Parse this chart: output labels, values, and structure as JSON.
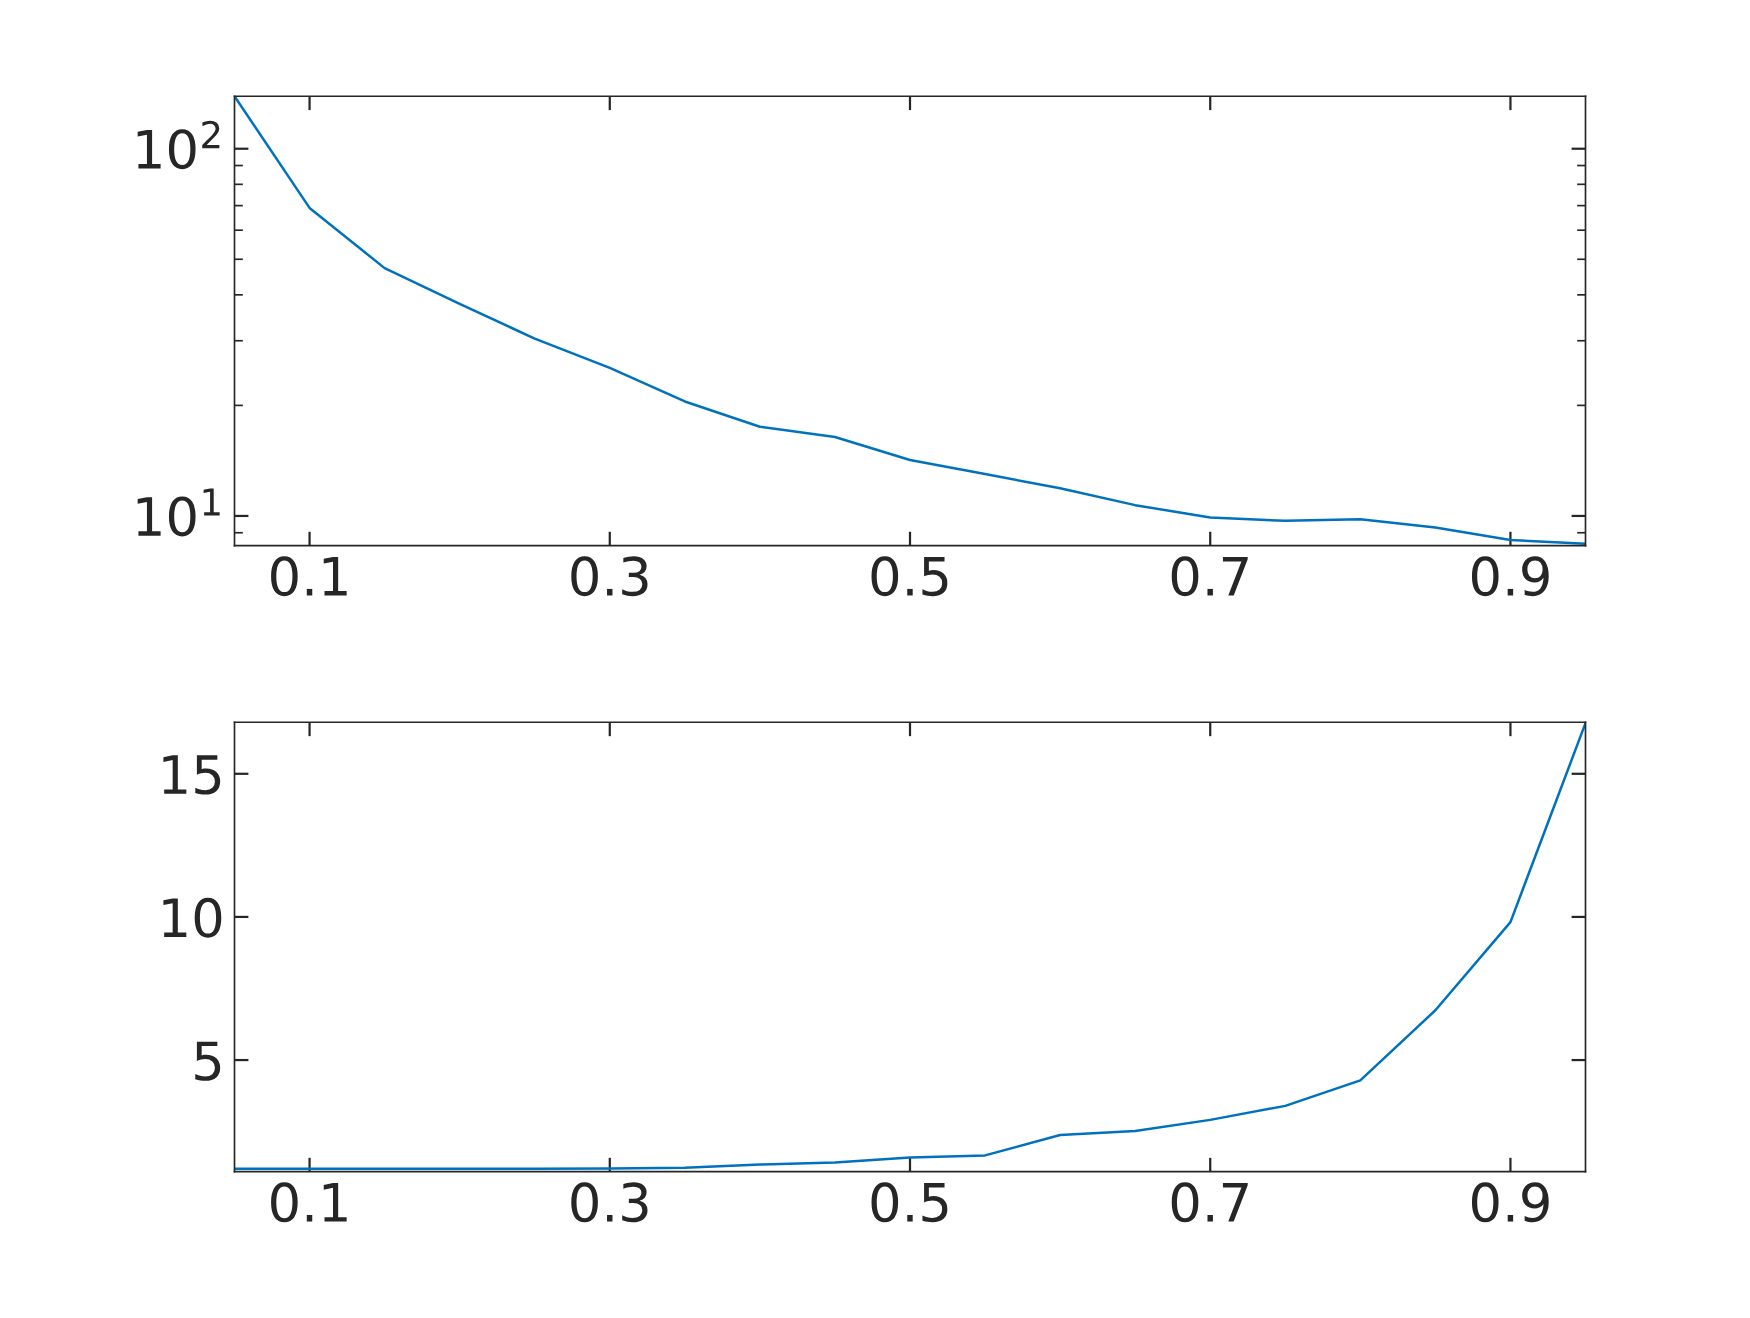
{
  "chart_data": [
    {
      "type": "line",
      "log": "y",
      "x": [
        0.05,
        0.1,
        0.15,
        0.2,
        0.25,
        0.3,
        0.35,
        0.4,
        0.45,
        0.5,
        0.55,
        0.6,
        0.65,
        0.7,
        0.75,
        0.8,
        0.85,
        0.9,
        0.95
      ],
      "series": [
        {
          "color": "#0072bd",
          "values": [
            139,
            69,
            47.3,
            37.8,
            30.4,
            25.3,
            20.5,
            17.5,
            16.4,
            14.2,
            13.0,
            11.9,
            10.7,
            9.9,
            9.7,
            9.8,
            9.3,
            8.6,
            8.4
          ]
        }
      ],
      "xlim": [
        0.05,
        0.95
      ],
      "xticks": [
        0.1,
        0.3,
        0.5,
        0.7,
        0.9
      ],
      "ylim": [
        8.3,
        139
      ],
      "yticks": [
        {
          "value": 10,
          "label": "10$^{1}$"
        },
        {
          "value": 100,
          "label": "10$^{2}$"
        }
      ],
      "grid": false,
      "legend": false,
      "marker": "none",
      "line_style": "solid"
    },
    {
      "type": "line",
      "x": [
        0.05,
        0.1,
        0.15,
        0.2,
        0.25,
        0.3,
        0.35,
        0.4,
        0.45,
        0.5,
        0.55,
        0.6,
        0.65,
        0.7,
        0.75,
        0.8,
        0.85,
        0.9,
        0.95
      ],
      "series": [
        {
          "color": "#0072bd",
          "values": [
            1.2,
            1.2,
            1.2,
            1.2,
            1.2,
            1.21,
            1.24,
            1.35,
            1.42,
            1.6,
            1.67,
            2.38,
            2.52,
            2.91,
            3.4,
            4.29,
            6.74,
            9.82,
            16.77
          ]
        }
      ],
      "xlim": [
        0.05,
        0.95
      ],
      "xticks": [
        0.1,
        0.3,
        0.5,
        0.7,
        0.9
      ],
      "ylim": [
        1.1,
        16.8
      ],
      "yticks": [
        5,
        10,
        15
      ],
      "grid": false,
      "legend": false,
      "marker": "none",
      "line_style": "solid"
    }
  ]
}
